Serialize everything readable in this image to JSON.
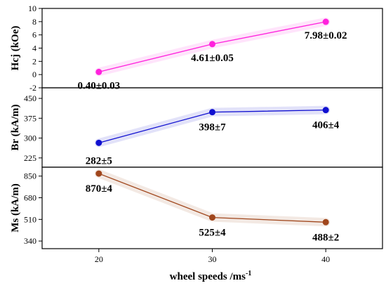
{
  "chart_data": {
    "type": "line",
    "layout": "stacked-panels-shared-x",
    "x_values": [
      20,
      30,
      40
    ],
    "x_ticks": [
      20,
      30,
      40
    ],
    "x_range": [
      15,
      45
    ],
    "xlabel": "wheel speeds /ms",
    "xlabel_superscript": "-1",
    "grid": false,
    "legend": "none",
    "panels": [
      {
        "ylabel": "Hcj (kOe)",
        "color": "#ff22dd",
        "y_range": [
          -2,
          10
        ],
        "y_ticks": [
          -2,
          0,
          2,
          4,
          6,
          8,
          10
        ],
        "values": [
          0.4,
          4.61,
          7.98
        ],
        "labels": [
          "0.40±0.03",
          "4.61±0.05",
          "7.98±0.02"
        ]
      },
      {
        "ylabel": "Br (kA/m)",
        "color": "#1010d0",
        "y_range": [
          190,
          490
        ],
        "y_ticks": [
          225,
          300,
          375,
          450
        ],
        "values": [
          282,
          398,
          406
        ],
        "labels": [
          "282±5",
          "398±7",
          "406±4"
        ]
      },
      {
        "ylabel": "Ms (kA/m)",
        "color": "#a0461c",
        "y_range": [
          280,
          920
        ],
        "y_ticks": [
          340,
          510,
          680,
          850
        ],
        "values": [
          870,
          525,
          488
        ],
        "labels": [
          "870±4",
          "525±4",
          "488±2"
        ]
      }
    ]
  }
}
